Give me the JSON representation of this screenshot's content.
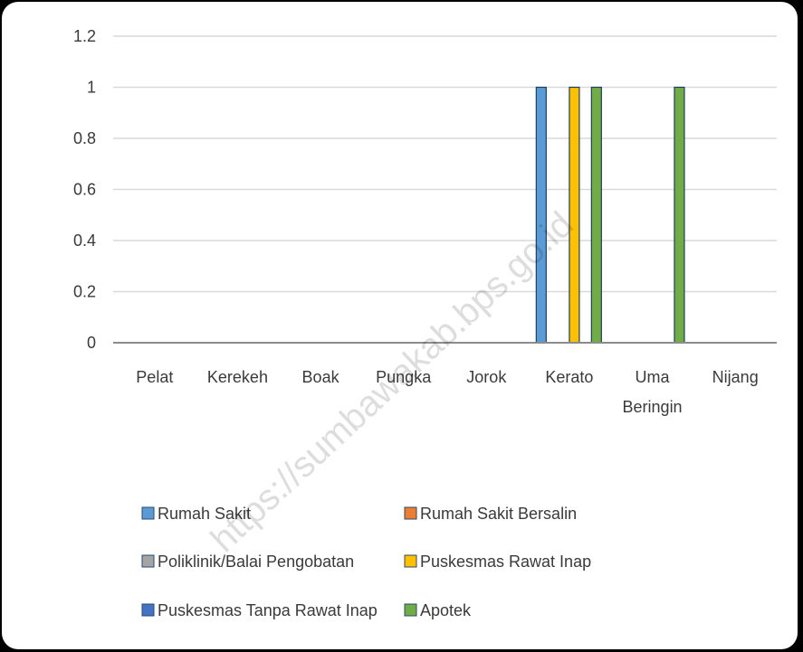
{
  "watermark": "https://sumbawakab.bps.go.id",
  "chart_data": {
    "type": "bar",
    "categories": [
      "Pelat",
      "Kerekeh",
      "Boak",
      "Pungka",
      "Jorok",
      "Kerato",
      "Uma Beringin",
      "Nijang"
    ],
    "ylim": [
      0,
      1.2
    ],
    "yticks": [
      "0",
      "0.2",
      "0.4",
      "0.6",
      "0.8",
      "1",
      "1.2"
    ],
    "grid": true,
    "legend_position": "bottom",
    "series": [
      {
        "name": "Rumah Sakit",
        "color": "#5b9bd5",
        "values": [
          0,
          0,
          0,
          0,
          0,
          1,
          0,
          0
        ]
      },
      {
        "name": "Rumah Sakit Bersalin",
        "color": "#ed7d31",
        "values": [
          0,
          0,
          0,
          0,
          0,
          0,
          0,
          0
        ]
      },
      {
        "name": "Poliklinik/Balai Pengobatan",
        "color": "#a5a5a5",
        "values": [
          0,
          0,
          0,
          0,
          0,
          0,
          0,
          0
        ]
      },
      {
        "name": "Puskesmas Rawat Inap",
        "color": "#ffc000",
        "values": [
          0,
          0,
          0,
          0,
          0,
          1,
          0,
          0
        ]
      },
      {
        "name": "Puskesmas Tanpa Rawat Inap",
        "color": "#4472c4",
        "values": [
          0,
          0,
          0,
          0,
          0,
          0,
          0,
          0
        ]
      },
      {
        "name": "Apotek",
        "color": "#70ad47",
        "values": [
          0,
          0,
          0,
          0,
          0,
          1,
          1,
          0
        ]
      }
    ]
  }
}
